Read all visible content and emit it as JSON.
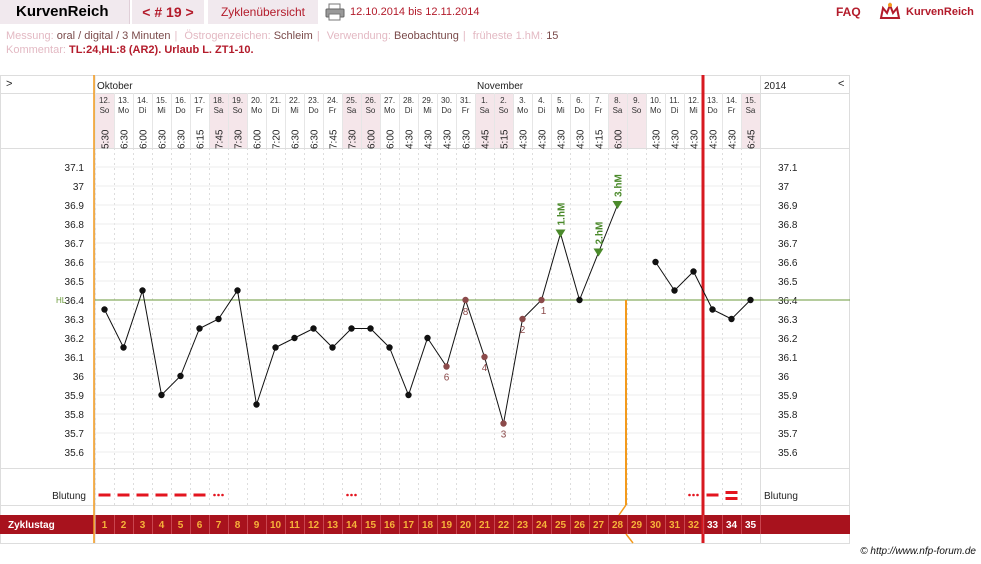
{
  "header": {
    "app_title": "KurvenReich",
    "cycle_nav": "< # 19 >",
    "cycles_overview": "Zyklenübersicht",
    "date_range": "12.10.2014 bis 12.11.2014",
    "faq": "FAQ",
    "logo_text": "KurvenReich",
    "print_icon": "printer-icon",
    "logo_icon": "crown-icon"
  },
  "info": {
    "messung_label": "Messung:",
    "messung_value": "oral / digital / 3 Minuten",
    "oestrogen_label": "Östrogenzeichen:",
    "oestrogen_value": "Schleim",
    "verwendung_label": "Verwendung:",
    "verwendung_value": "Beobachtung",
    "frueheste_label": "früheste 1.hM:",
    "frueheste_value": "15",
    "kommentar_label": "Kommentar:",
    "kommentar_value": "TL:24,HL:8 (AR2). Urlaub L. ZT1-10."
  },
  "credit": "© http://www.nfp-forum.de",
  "colors": {
    "accent": "#b31b2b",
    "orange": "#f39a1c",
    "green": "#4b8a2b",
    "label_marker": "#8b4a4a",
    "weekend": "#f5e6ea"
  },
  "chart_data": {
    "type": "line",
    "nav_left": ">",
    "nav_right": "<",
    "months": [
      {
        "label": "Oktober",
        "col": 0
      },
      {
        "label": "November",
        "col": 20
      }
    ],
    "year_label": "2014",
    "y_ticks": [
      "37.1",
      "37",
      "36.9",
      "36.8",
      "36.7",
      "36.6",
      "36.5",
      "36.4",
      "36.3",
      "36.2",
      "36.1",
      "36",
      "35.9",
      "35.8",
      "35.7",
      "35.6"
    ],
    "ylim": [
      35.55,
      37.2
    ],
    "hl_label": "HL",
    "hl_value": 36.4,
    "dates": [
      "12.",
      "13.",
      "14.",
      "15.",
      "16.",
      "17.",
      "18.",
      "19.",
      "20.",
      "21.",
      "22.",
      "23.",
      "24.",
      "25.",
      "26.",
      "27.",
      "28.",
      "29.",
      "30.",
      "31.",
      "1.",
      "2.",
      "3.",
      "4.",
      "5.",
      "6.",
      "7.",
      "8.",
      "9.",
      "10.",
      "11.",
      "12.",
      "13.",
      "14.",
      "15."
    ],
    "weekdays": [
      "So",
      "Mo",
      "Di",
      "Mi",
      "Do",
      "Fr",
      "Sa",
      "So",
      "Mo",
      "Di",
      "Mi",
      "Do",
      "Fr",
      "Sa",
      "So",
      "Mo",
      "Di",
      "Mi",
      "Do",
      "Fr",
      "Sa",
      "So",
      "Mo",
      "Di",
      "Mi",
      "Do",
      "Fr",
      "Sa",
      "So",
      "Mo",
      "Di",
      "Mi",
      "Do",
      "Fr",
      "Sa"
    ],
    "times": [
      "5:30",
      "6:30",
      "6:00",
      "6:30",
      "6:30",
      "6:15",
      "7:45",
      "7:30",
      "6:00",
      "7:20",
      "6:30",
      "6:30",
      "7:45",
      "7:30",
      "6:00",
      "6:00",
      "4:30",
      "4:30",
      "4:30",
      "6:30",
      "4:45",
      "5:15",
      "4:30",
      "4:30",
      "4:30",
      "4:30",
      "4:15",
      "6:00",
      "",
      "4:30",
      "4:30",
      "4:30",
      "4:30",
      "4:30",
      "6:45"
    ],
    "weekend_cols": [
      0,
      6,
      7,
      13,
      14,
      20,
      21,
      27,
      28,
      34
    ],
    "temps": [
      36.35,
      36.15,
      36.45,
      35.9,
      36.0,
      36.25,
      36.3,
      36.45,
      35.85,
      36.15,
      36.2,
      36.25,
      36.15,
      36.25,
      36.25,
      36.15,
      35.9,
      36.2,
      36.05,
      36.4,
      36.1,
      35.75,
      36.3,
      36.4,
      36.75,
      36.4,
      36.65,
      36.9,
      null,
      36.6,
      36.45,
      36.55,
      36.35,
      36.3,
      36.4
    ],
    "low_labels": [
      {
        "col": 19,
        "text": "8"
      },
      {
        "col": 18,
        "text": "6"
      },
      {
        "col": 20,
        "text": "4"
      },
      {
        "col": 21,
        "text": "3"
      },
      {
        "col": 22,
        "text": "2"
      },
      {
        "col": 23,
        "text": "1"
      }
    ],
    "high_labels": [
      {
        "col": 24,
        "text": "1.hM"
      },
      {
        "col": 26,
        "text": "2.hM"
      },
      {
        "col": 27,
        "text": "3.hM"
      }
    ],
    "orange_line_col": 27,
    "red_line_col": 31,
    "bleeding_label": "Blutung",
    "bleeding": [
      {
        "col": 0,
        "type": "dash"
      },
      {
        "col": 1,
        "type": "dash"
      },
      {
        "col": 2,
        "type": "dash"
      },
      {
        "col": 3,
        "type": "dash"
      },
      {
        "col": 4,
        "type": "dash"
      },
      {
        "col": 5,
        "type": "dash"
      },
      {
        "col": 6,
        "type": "dots"
      },
      {
        "col": 13,
        "type": "dots"
      },
      {
        "col": 31,
        "type": "dots"
      },
      {
        "col": 32,
        "type": "dash"
      },
      {
        "col": 33,
        "type": "double"
      }
    ],
    "cycle_label": "Zyklustag",
    "cycle_days": [
      "1",
      "2",
      "3",
      "4",
      "5",
      "6",
      "7",
      "8",
      "9",
      "10",
      "11",
      "12",
      "13",
      "14",
      "15",
      "16",
      "17",
      "18",
      "19",
      "20",
      "21",
      "22",
      "23",
      "24",
      "25",
      "26",
      "27",
      "28",
      "29",
      "30",
      "31",
      "32",
      "33",
      "34",
      "35"
    ]
  }
}
